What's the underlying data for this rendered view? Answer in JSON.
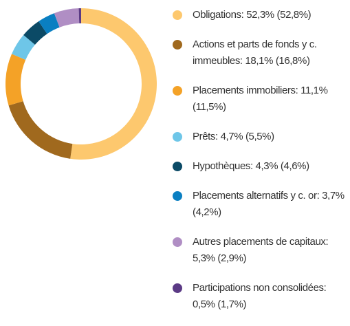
{
  "chart_data": {
    "type": "donut",
    "categories": [
      "Obligations:",
      "Actions et parts de fonds y c. immeubles:",
      "Placements immobiliers:",
      "Prêts:",
      "Hypothèques:",
      "Placements alternatifs y c. or:",
      "Autres placements de capitaux:",
      "Participations non consolidées:"
    ],
    "values": [
      52.3,
      18.1,
      11.1,
      4.7,
      4.3,
      3.7,
      5.3,
      0.5
    ],
    "value_labels": [
      "52,3%",
      "18,1%",
      "11,1%",
      "4,7%",
      "4,3%",
      "3,7%",
      "5,3%",
      "0,5%"
    ],
    "previous_values": [
      52.8,
      16.8,
      11.5,
      5.5,
      4.6,
      4.2,
      2.9,
      1.7
    ],
    "previous_labels": [
      "(52,8%)",
      "(16,8%)",
      "(11,5%)",
      "(5,5%)",
      "(4,6%)",
      "(4,2%)",
      "(2,9%)",
      "(1,7%)"
    ],
    "colors": [
      "#fdc86e",
      "#a0691e",
      "#f4a227",
      "#6ec6e8",
      "#0b4a66",
      "#0a7fc2",
      "#b08ec4",
      "#5b3a85"
    ]
  }
}
